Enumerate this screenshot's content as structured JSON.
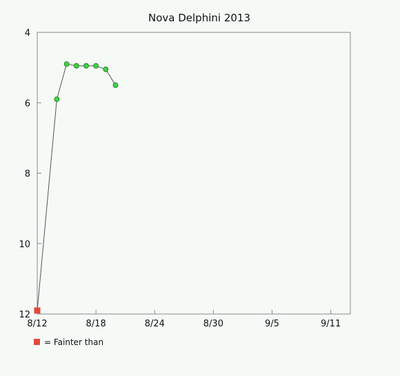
{
  "chart_data": {
    "type": "line",
    "title": "Nova Delphini 2013",
    "xlabel": "",
    "ylabel": "",
    "x_tick_labels": [
      "8/12",
      "8/18",
      "8/24",
      "8/30",
      "9/5",
      "9/11"
    ],
    "x_tick_days": [
      0,
      6,
      12,
      18,
      24,
      30
    ],
    "xlim_days": [
      0,
      32
    ],
    "ylim": [
      12,
      4
    ],
    "y_inverted": true,
    "y_tick_values": [
      4,
      6,
      8,
      10,
      12
    ],
    "y_tick_labels": [
      "4",
      "6",
      "8",
      "10",
      "12"
    ],
    "series": [
      {
        "marker": "square",
        "color": "#e24a3b",
        "points": [
          {
            "x": "8/12",
            "y": 11.9
          }
        ]
      },
      {
        "marker": "circle",
        "color": "#43d443",
        "points": [
          {
            "x": "8/14",
            "y": 5.9
          },
          {
            "x": "8/15",
            "y": 4.9
          },
          {
            "x": "8/16",
            "y": 4.95
          },
          {
            "x": "8/17",
            "y": 4.95
          },
          {
            "x": "8/18",
            "y": 4.95
          },
          {
            "x": "8/19",
            "y": 5.05
          },
          {
            "x": "8/20",
            "y": 5.5
          }
        ]
      }
    ],
    "line_color": "#555555",
    "grid": false,
    "legend": {
      "placement": "bottom-left",
      "items": [
        {
          "symbol": "square",
          "color": "#e24a3b",
          "label": "= Fainter than"
        }
      ]
    }
  }
}
